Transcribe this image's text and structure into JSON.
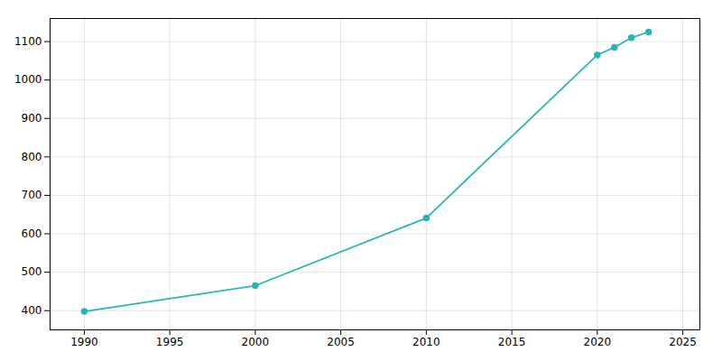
{
  "chart_data": {
    "type": "line",
    "x": [
      1990,
      2000,
      2010,
      2020,
      2021,
      2022,
      2023
    ],
    "values": [
      398,
      465,
      641,
      1065,
      1085,
      1110,
      1125
    ],
    "color": "#2ab5b5",
    "marker": "circle",
    "xlim": [
      1988,
      2026
    ],
    "ylim": [
      350,
      1160
    ],
    "xticks": [
      1990,
      1995,
      2000,
      2005,
      2010,
      2015,
      2020,
      2025
    ],
    "yticks": [
      400,
      500,
      600,
      700,
      800,
      900,
      1000,
      1100
    ],
    "grid": true
  }
}
